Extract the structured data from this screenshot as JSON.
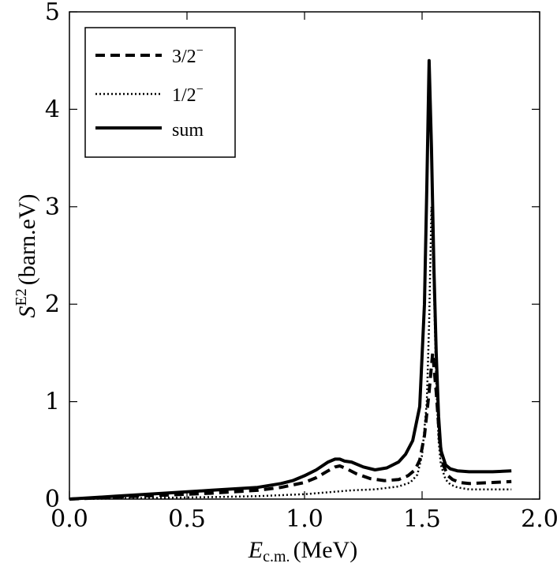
{
  "chart_data": {
    "type": "line",
    "title": "",
    "xlabel_main": "E",
    "xlabel_sub": "c.m.",
    "xlabel_unit": "(MeV)",
    "ylabel_main": "S",
    "ylabel_sup": "E2",
    "ylabel_unit": "(barn.eV)",
    "xlim": [
      0.0,
      2.0
    ],
    "ylim": [
      0,
      5
    ],
    "xticks": [
      0.0,
      0.5,
      1.0,
      1.5,
      2.0
    ],
    "xtick_labels": [
      "0.0",
      "0.5",
      "1.0",
      "1.5",
      "2.0"
    ],
    "yticks": [
      0,
      1,
      2,
      3,
      4,
      5
    ],
    "ytick_labels": [
      "0",
      "1",
      "2",
      "3",
      "4",
      "5"
    ],
    "grid": false,
    "legend_position": "top-left",
    "series": [
      {
        "name": "3/2",
        "name_sup": "−",
        "style": "dashed",
        "x": [
          0.0,
          0.2,
          0.4,
          0.6,
          0.8,
          0.9,
          1.0,
          1.05,
          1.1,
          1.13,
          1.15,
          1.18,
          1.22,
          1.28,
          1.34,
          1.4,
          1.44,
          1.47,
          1.49,
          1.51,
          1.53,
          1.545,
          1.56,
          1.575,
          1.59,
          1.61,
          1.63,
          1.66,
          1.7,
          1.8,
          1.88
        ],
        "y": [
          0.0,
          0.02,
          0.04,
          0.06,
          0.09,
          0.12,
          0.17,
          0.22,
          0.29,
          0.33,
          0.34,
          0.31,
          0.26,
          0.21,
          0.19,
          0.2,
          0.24,
          0.3,
          0.4,
          0.65,
          1.1,
          1.5,
          1.1,
          0.6,
          0.35,
          0.24,
          0.2,
          0.17,
          0.16,
          0.17,
          0.18
        ]
      },
      {
        "name": "1/2",
        "name_sup": "−",
        "style": "dotted",
        "x": [
          0.0,
          0.3,
          0.6,
          0.8,
          1.0,
          1.1,
          1.2,
          1.3,
          1.4,
          1.45,
          1.48,
          1.5,
          1.52,
          1.53,
          1.54,
          1.55,
          1.56,
          1.57,
          1.58,
          1.6,
          1.62,
          1.65,
          1.7,
          1.8,
          1.88
        ],
        "y": [
          0.0,
          0.01,
          0.02,
          0.03,
          0.05,
          0.07,
          0.09,
          0.1,
          0.13,
          0.17,
          0.25,
          0.45,
          1.0,
          1.8,
          3.0,
          2.2,
          1.2,
          0.6,
          0.35,
          0.2,
          0.15,
          0.12,
          0.1,
          0.1,
          0.1
        ]
      },
      {
        "name": "sum",
        "name_sup": "",
        "style": "solid",
        "x": [
          0.0,
          0.2,
          0.4,
          0.6,
          0.8,
          0.9,
          0.95,
          1.0,
          1.05,
          1.1,
          1.13,
          1.15,
          1.17,
          1.2,
          1.25,
          1.3,
          1.35,
          1.4,
          1.43,
          1.46,
          1.49,
          1.51,
          1.52,
          1.53,
          1.54,
          1.55,
          1.56,
          1.57,
          1.58,
          1.6,
          1.62,
          1.65,
          1.7,
          1.8,
          1.88
        ],
        "y": [
          0.0,
          0.03,
          0.06,
          0.09,
          0.12,
          0.16,
          0.19,
          0.24,
          0.3,
          0.38,
          0.41,
          0.41,
          0.39,
          0.38,
          0.33,
          0.3,
          0.32,
          0.38,
          0.46,
          0.6,
          0.95,
          2.0,
          3.2,
          4.5,
          3.6,
          2.4,
          1.5,
          0.85,
          0.5,
          0.35,
          0.31,
          0.29,
          0.28,
          0.28,
          0.29
        ]
      }
    ]
  }
}
